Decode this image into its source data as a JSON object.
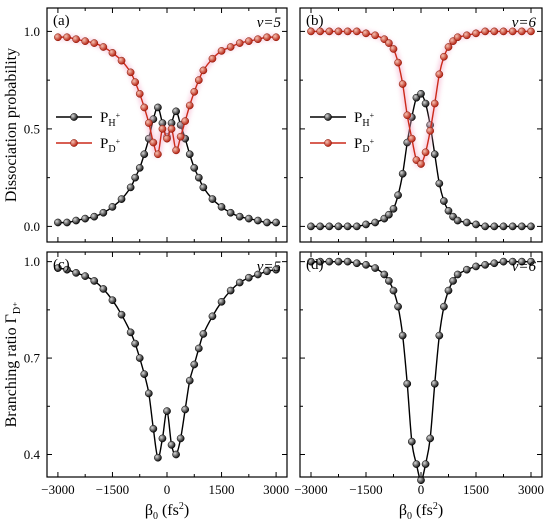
{
  "chart_data": [
    {
      "panel": "(a)",
      "type": "line",
      "annotation": "v=5",
      "ylabel": "Dissociation probability",
      "xlim": [
        -3300,
        3300
      ],
      "ylim": [
        -0.08,
        1.12
      ],
      "yticks": [
        0.0,
        0.5,
        1.0
      ],
      "ytick_labels": [
        "0.0",
        "0.5",
        "1.0"
      ],
      "x": [
        -3000,
        -2750,
        -2500,
        -2250,
        -2000,
        -1750,
        -1500,
        -1250,
        -1000,
        -875,
        -750,
        -625,
        -500,
        -375,
        -250,
        -125,
        0,
        125,
        250,
        375,
        500,
        625,
        750,
        875,
        1000,
        1250,
        1500,
        1750,
        2000,
        2250,
        2500,
        2750,
        3000
      ],
      "series": [
        {
          "name": "P_H+",
          "color": "#000000",
          "values": [
            0.02,
            0.02,
            0.03,
            0.04,
            0.05,
            0.07,
            0.1,
            0.14,
            0.2,
            0.25,
            0.3,
            0.37,
            0.45,
            0.55,
            0.61,
            0.53,
            0.46,
            0.53,
            0.59,
            0.52,
            0.45,
            0.37,
            0.3,
            0.25,
            0.2,
            0.14,
            0.1,
            0.07,
            0.05,
            0.04,
            0.03,
            0.02,
            0.02
          ]
        },
        {
          "name": "P_D+",
          "color": "#cc2a1a",
          "values": [
            0.97,
            0.97,
            0.96,
            0.95,
            0.94,
            0.92,
            0.89,
            0.85,
            0.79,
            0.74,
            0.68,
            0.61,
            0.53,
            0.43,
            0.37,
            0.5,
            0.45,
            0.5,
            0.39,
            0.46,
            0.54,
            0.62,
            0.69,
            0.75,
            0.8,
            0.86,
            0.9,
            0.92,
            0.94,
            0.95,
            0.96,
            0.97,
            0.97
          ]
        }
      ]
    },
    {
      "panel": "(b)",
      "type": "line",
      "annotation": "v=6",
      "xlim": [
        -3300,
        3300
      ],
      "ylim": [
        -0.08,
        1.12
      ],
      "x": [
        -3000,
        -2750,
        -2500,
        -2250,
        -2000,
        -1750,
        -1500,
        -1250,
        -1000,
        -875,
        -750,
        -625,
        -500,
        -375,
        -250,
        -125,
        0,
        125,
        250,
        375,
        500,
        625,
        750,
        875,
        1000,
        1250,
        1500,
        1750,
        2000,
        2250,
        2500,
        2750,
        3000
      ],
      "series": [
        {
          "name": "P_H+",
          "color": "#000000",
          "values": [
            0.0,
            0.0,
            0.0,
            0.0,
            0.0,
            0.0,
            0.01,
            0.02,
            0.04,
            0.06,
            0.09,
            0.16,
            0.27,
            0.43,
            0.56,
            0.66,
            0.68,
            0.63,
            0.52,
            0.37,
            0.22,
            0.13,
            0.08,
            0.05,
            0.03,
            0.02,
            0.01,
            0.0,
            0.0,
            0.0,
            0.0,
            0.0,
            0.0
          ]
        },
        {
          "name": "P_D+",
          "color": "#cc2a1a",
          "values": [
            1.0,
            1.0,
            1.0,
            1.0,
            1.0,
            1.0,
            0.99,
            0.98,
            0.96,
            0.94,
            0.91,
            0.84,
            0.73,
            0.57,
            0.45,
            0.34,
            0.32,
            0.38,
            0.49,
            0.63,
            0.78,
            0.87,
            0.92,
            0.95,
            0.97,
            0.98,
            0.99,
            1.0,
            1.0,
            1.0,
            1.0,
            1.0,
            1.0
          ]
        }
      ]
    },
    {
      "panel": "(c)",
      "type": "line",
      "annotation": "v=5",
      "ylabel": "Branching ratio Γ",
      "ylabel_sub": "D⁺",
      "xlabel": "β",
      "xlabel_sub": "0",
      "xlabel_tail": " (fs",
      "xlabel_sup": "2",
      "xlabel_end": ")",
      "xlim": [
        -3300,
        3300
      ],
      "ylim": [
        0.33,
        1.03
      ],
      "yticks": [
        0.4,
        0.7,
        1.0
      ],
      "ytick_labels": [
        "0.4",
        "0.7",
        "1.0"
      ],
      "xticks": [
        -3000,
        -1500,
        0,
        1500,
        3000
      ],
      "xtick_labels": [
        "−3000",
        "−1500",
        "0",
        "1500",
        "3000"
      ],
      "x": [
        -3000,
        -2750,
        -2500,
        -2250,
        -2000,
        -1750,
        -1500,
        -1250,
        -1000,
        -875,
        -750,
        -625,
        -500,
        -375,
        -250,
        -125,
        0,
        125,
        250,
        375,
        500,
        625,
        750,
        875,
        1000,
        1250,
        1500,
        1750,
        2000,
        2250,
        2500,
        2750,
        3000
      ],
      "series": [
        {
          "name": "Γ_D+",
          "color": "#000000",
          "values": [
            0.98,
            0.975,
            0.965,
            0.955,
            0.94,
            0.915,
            0.88,
            0.835,
            0.78,
            0.745,
            0.7,
            0.65,
            0.59,
            0.48,
            0.39,
            0.45,
            0.535,
            0.43,
            0.4,
            0.45,
            0.54,
            0.63,
            0.68,
            0.73,
            0.775,
            0.83,
            0.875,
            0.91,
            0.935,
            0.95,
            0.96,
            0.97,
            0.975
          ]
        }
      ]
    },
    {
      "panel": "(d)",
      "type": "line",
      "annotation": "v=6",
      "xlabel": "β",
      "xlabel_sub": "0",
      "xlabel_tail": " (fs",
      "xlabel_sup": "2",
      "xlabel_end": ")",
      "xlim": [
        -3300,
        3300
      ],
      "ylim": [
        0.33,
        1.03
      ],
      "xticks": [
        -3000,
        -1500,
        0,
        1500,
        3000
      ],
      "xtick_labels": [
        "−3000",
        "−1500",
        "0",
        "1500",
        "3000"
      ],
      "x": [
        -3000,
        -2750,
        -2500,
        -2250,
        -2000,
        -1750,
        -1500,
        -1250,
        -1000,
        -875,
        -750,
        -625,
        -500,
        -375,
        -250,
        -125,
        0,
        125,
        250,
        375,
        500,
        625,
        750,
        875,
        1000,
        1250,
        1500,
        1750,
        2000,
        2250,
        2500,
        2750,
        3000
      ],
      "series": [
        {
          "name": "Γ_D+",
          "color": "#000000",
          "values": [
            1.0,
            1.0,
            1.0,
            1.0,
            1.0,
            0.995,
            0.99,
            0.98,
            0.96,
            0.94,
            0.91,
            0.86,
            0.77,
            0.62,
            0.44,
            0.37,
            0.32,
            0.37,
            0.45,
            0.62,
            0.77,
            0.86,
            0.91,
            0.94,
            0.96,
            0.975,
            0.985,
            0.99,
            0.995,
            1.0,
            1.0,
            1.0,
            1.0
          ]
        }
      ]
    }
  ],
  "legend": {
    "h_main": "P",
    "h_sub": "H",
    "h_sup": "+",
    "d_main": "P",
    "d_sub": "D",
    "d_sup": "+"
  }
}
